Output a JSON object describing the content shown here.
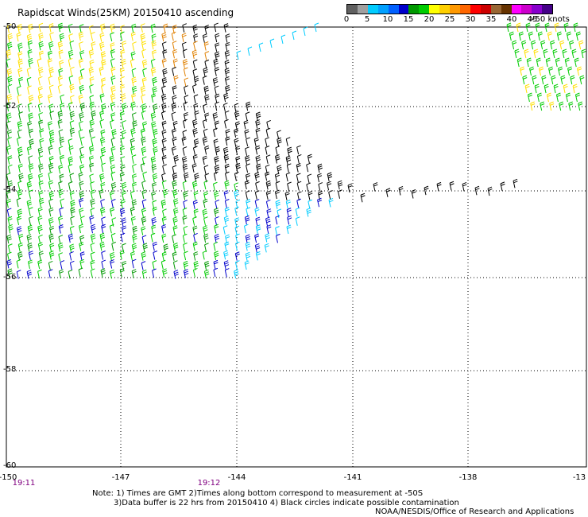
{
  "title": "Rapidscat Winds(25KM) 20150410 ascending",
  "legend": {
    "labels": [
      "0",
      "5",
      "10",
      "15",
      "20",
      "25",
      "30",
      "35",
      "40",
      "45",
      ">50 knots"
    ],
    "colors": [
      "#606060",
      "#a0a0a0",
      "#00ccff",
      "#00a0ff",
      "#0060ff",
      "#0000cc",
      "#009900",
      "#00cc00",
      "#ffff00",
      "#ffd000",
      "#ff9900",
      "#ff6600",
      "#ff0000",
      "#cc0000",
      "#996633",
      "#663300",
      "#ff00ff",
      "#cc00cc",
      "#8800cc",
      "#440088"
    ]
  },
  "map": {
    "lat_labels": [
      "-50",
      "-52",
      "-54",
      "-56",
      "-58",
      "-60"
    ],
    "lon_labels": [
      "-150",
      "-147",
      "-144",
      "-141",
      "-138",
      "-13"
    ],
    "times": [
      "19:11",
      "19:12"
    ]
  },
  "notes": {
    "line1": "Note: 1) Times are GMT 2)Times along bottom correspond to measurement at -50S",
    "line2": "3)Data buffer is 22 hrs from 20150410 4) Black circles indicate possible contamination",
    "credit": "NOAA/NESDIS/Office of Research and Applications"
  },
  "wind_colors": {
    "black": "#000000",
    "cyan": "#00ccff",
    "blue": "#0000cc",
    "green": "#00cc00",
    "darkgreen": "#009900",
    "yellow": "#ffe000",
    "orange": "#e08000"
  }
}
